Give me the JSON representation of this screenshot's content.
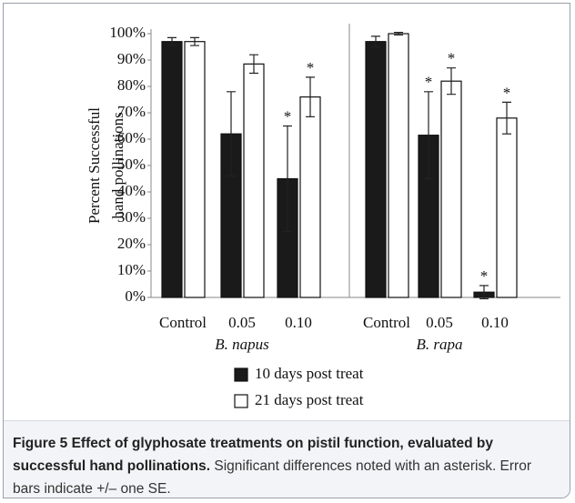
{
  "chart_data": {
    "type": "bar",
    "groups": [
      "B. napus",
      "B. rapa"
    ],
    "categories": [
      "Control",
      "0.05",
      "0.10",
      "Control",
      "0.05",
      "0.10"
    ],
    "series": [
      {
        "name": "10 days post treat",
        "color": "#1a1a1a",
        "values": [
          97,
          62,
          45,
          97,
          61.5,
          2
        ],
        "errors": [
          1.5,
          16,
          20,
          2,
          16.5,
          2.5
        ],
        "significance": [
          null,
          null,
          "*",
          null,
          "*",
          "*"
        ]
      },
      {
        "name": "21 days post treat",
        "color": "#ffffff",
        "values": [
          97,
          88.5,
          76,
          100,
          82,
          68
        ],
        "errors": [
          1.5,
          3.5,
          7.5,
          0.5,
          5,
          6
        ],
        "significance": [
          null,
          null,
          "*",
          null,
          "*",
          "*"
        ]
      }
    ],
    "y_label": [
      "Percent Successful",
      "hand pollinations"
    ],
    "ylim": [
      0,
      100
    ],
    "yticks": [
      {
        "value": 0,
        "label": "0%"
      },
      {
        "value": 10,
        "label": "10%"
      },
      {
        "value": 20,
        "label": "20%"
      },
      {
        "value": 30,
        "label": "30%"
      },
      {
        "value": 40,
        "label": "40%"
      },
      {
        "value": 50,
        "label": "50%"
      },
      {
        "value": 60,
        "label": "60%"
      },
      {
        "value": 70,
        "label": "70%"
      },
      {
        "value": 80,
        "label": "80%"
      },
      {
        "value": 90,
        "label": "90%"
      },
      {
        "value": 100,
        "label": "100%"
      }
    ]
  },
  "caption": {
    "title": "Figure 5 Effect of glyphosate treatments on pistil function, evaluated by successful hand pollinations.",
    "text": "Significant differences noted with an asterisk. Error bars indicate +/– one SE."
  }
}
